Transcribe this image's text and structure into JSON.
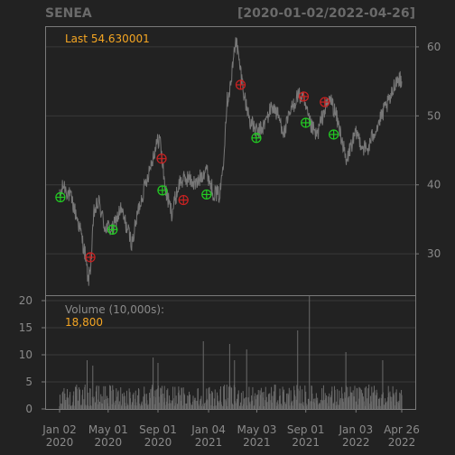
{
  "header": {
    "symbol": "SENEA",
    "range": "[2020-01-02/2022-04-26]"
  },
  "colors": {
    "background": "#222222",
    "frame": "#7a7a7a",
    "grid": "#3a3a3a",
    "price_line": "#777777",
    "volume_bar": "#6a6a6a",
    "label_text": "#8a8a8a",
    "accent": "#f5a623",
    "buy_signal": "#22cc22",
    "sell_signal": "#cc2222"
  },
  "chart_data": [
    {
      "type": "line",
      "panel": "price",
      "annotation": {
        "label": "Last",
        "value": "54.630001"
      },
      "ylim": [
        24,
        63
      ],
      "yticks": [
        30,
        40,
        50,
        60
      ],
      "y_axis_side": "right",
      "grid": true,
      "x_range": [
        "2020-01-02",
        "2022-04-26"
      ],
      "series": [
        {
          "anchors": [
            [
              "2020-01-02",
              38.2
            ],
            [
              "2020-01-12",
              40.0
            ],
            [
              "2020-02-01",
              37.8
            ],
            [
              "2020-02-20",
              34.0
            ],
            [
              "2020-03-05",
              30.0
            ],
            [
              "2020-03-13",
              26.0
            ],
            [
              "2020-03-20",
              29.0
            ],
            [
              "2020-03-27",
              36.0
            ],
            [
              "2020-04-08",
              37.5
            ],
            [
              "2020-04-22",
              34.0
            ],
            [
              "2020-05-12",
              33.5
            ],
            [
              "2020-06-01",
              36.5
            ],
            [
              "2020-06-18",
              33.5
            ],
            [
              "2020-06-29",
              31.5
            ],
            [
              "2020-07-15",
              36.5
            ],
            [
              "2020-08-05",
              41.0
            ],
            [
              "2020-08-24",
              45.0
            ],
            [
              "2020-09-05",
              47.0
            ],
            [
              "2020-09-20",
              39.0
            ],
            [
              "2020-10-05",
              36.0
            ],
            [
              "2020-10-25",
              40.5
            ],
            [
              "2020-11-15",
              41.0
            ],
            [
              "2020-12-05",
              40.0
            ],
            [
              "2020-12-28",
              42.5
            ],
            [
              "2021-01-15",
              39.0
            ],
            [
              "2021-02-01",
              38.5
            ],
            [
              "2021-02-10",
              44.0
            ],
            [
              "2021-02-18",
              52.0
            ],
            [
              "2021-03-01",
              55.0
            ],
            [
              "2021-03-12",
              61.5
            ],
            [
              "2021-03-20",
              58.0
            ],
            [
              "2021-04-05",
              52.0
            ],
            [
              "2021-04-18",
              49.0
            ],
            [
              "2021-05-05",
              47.5
            ],
            [
              "2021-05-20",
              48.5
            ],
            [
              "2021-06-10",
              51.5
            ],
            [
              "2021-06-25",
              50.0
            ],
            [
              "2021-07-10",
              47.5
            ],
            [
              "2021-07-25",
              50.5
            ],
            [
              "2021-08-12",
              53.0
            ],
            [
              "2021-08-25",
              52.5
            ],
            [
              "2021-09-10",
              49.0
            ],
            [
              "2021-09-28",
              47.0
            ],
            [
              "2021-10-15",
              50.5
            ],
            [
              "2021-11-01",
              52.5
            ],
            [
              "2021-11-15",
              50.0
            ],
            [
              "2021-11-30",
              46.5
            ],
            [
              "2021-12-10",
              43.0
            ],
            [
              "2021-12-20",
              45.5
            ],
            [
              "2022-01-05",
              47.5
            ],
            [
              "2022-01-20",
              45.5
            ],
            [
              "2022-02-01",
              45.0
            ],
            [
              "2022-02-15",
              47.5
            ],
            [
              "2022-03-01",
              49.0
            ],
            [
              "2022-03-15",
              51.0
            ],
            [
              "2022-03-30",
              52.5
            ],
            [
              "2022-04-10",
              55.0
            ],
            [
              "2022-04-20",
              55.5
            ],
            [
              "2022-04-26",
              54.63
            ]
          ]
        }
      ],
      "markers": [
        {
          "date": "2020-01-04",
          "value": 38.2,
          "kind": "buy"
        },
        {
          "date": "2020-03-18",
          "value": 29.5,
          "kind": "sell"
        },
        {
          "date": "2020-05-12",
          "value": 33.5,
          "kind": "buy"
        },
        {
          "date": "2020-09-10",
          "value": 43.8,
          "kind": "sell"
        },
        {
          "date": "2020-09-12",
          "value": 39.2,
          "kind": "buy"
        },
        {
          "date": "2020-11-03",
          "value": 37.8,
          "kind": "sell"
        },
        {
          "date": "2020-12-30",
          "value": 38.6,
          "kind": "buy"
        },
        {
          "date": "2021-03-24",
          "value": 54.5,
          "kind": "sell"
        },
        {
          "date": "2021-05-02",
          "value": 46.8,
          "kind": "buy"
        },
        {
          "date": "2021-08-27",
          "value": 52.8,
          "kind": "sell"
        },
        {
          "date": "2021-09-01",
          "value": 49.0,
          "kind": "buy"
        },
        {
          "date": "2021-10-18",
          "value": 52.0,
          "kind": "sell"
        },
        {
          "date": "2021-11-09",
          "value": 47.3,
          "kind": "buy"
        }
      ]
    },
    {
      "type": "bar",
      "panel": "volume",
      "annotation": {
        "label": "Volume (10,000s):",
        "value": "18,800"
      },
      "ylim": [
        0,
        21
      ],
      "yticks": [
        0,
        5,
        10,
        15,
        20
      ],
      "y_axis_side": "left",
      "spikes": [
        [
          "2020-03-10",
          9.0
        ],
        [
          "2020-03-24",
          8.0
        ],
        [
          "2020-08-20",
          9.5
        ],
        [
          "2020-09-01",
          8.5
        ],
        [
          "2020-12-22",
          12.5
        ],
        [
          "2021-02-25",
          12.0
        ],
        [
          "2021-03-09",
          9.0
        ],
        [
          "2021-04-08",
          11.0
        ],
        [
          "2021-08-12",
          14.5
        ],
        [
          "2021-09-10",
          21.0
        ],
        [
          "2021-12-09",
          10.5
        ],
        [
          "2022-03-10",
          9.0
        ]
      ],
      "typical_range": [
        0.5,
        4.5
      ]
    }
  ],
  "x_axis": {
    "ticks": [
      {
        "line1": "Jan 02",
        "line2": "2020",
        "date": "2020-01-02"
      },
      {
        "line1": "May 01",
        "line2": "2020",
        "date": "2020-05-01"
      },
      {
        "line1": "Sep 01",
        "line2": "2020",
        "date": "2020-09-01"
      },
      {
        "line1": "Jan 04",
        "line2": "2021",
        "date": "2021-01-04"
      },
      {
        "line1": "May 03",
        "line2": "2021",
        "date": "2021-05-03"
      },
      {
        "line1": "Sep 01",
        "line2": "2021",
        "date": "2021-09-01"
      },
      {
        "line1": "Jan 03",
        "line2": "2022",
        "date": "2022-01-03"
      },
      {
        "line1": "Apr 26",
        "line2": "2022",
        "date": "2022-04-26"
      }
    ]
  }
}
